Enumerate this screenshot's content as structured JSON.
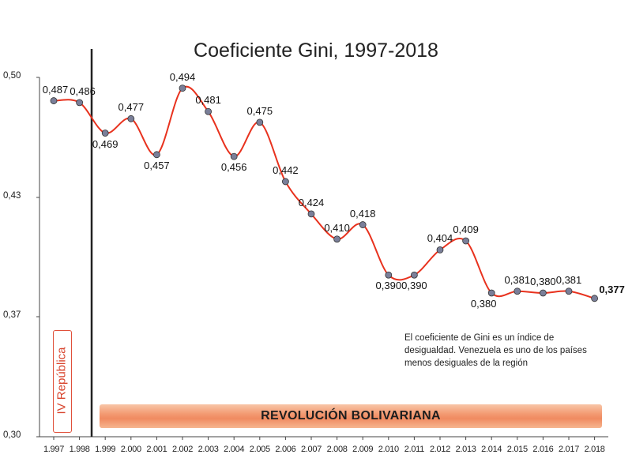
{
  "chart_data": {
    "type": "line",
    "title": "Coeficiente Gini, 1997-2018",
    "x": [
      "1.997",
      "1.998",
      "1.999",
      "2.000",
      "2.001",
      "2.002",
      "2.003",
      "2.004",
      "2.005",
      "2.006",
      "2.007",
      "2.008",
      "2.009",
      "2.010",
      "2.011",
      "2.012",
      "2.013",
      "2.014",
      "2.015",
      "2.016",
      "2.017",
      "2.018"
    ],
    "values": [
      0.487,
      0.486,
      0.469,
      0.477,
      0.457,
      0.494,
      0.481,
      0.456,
      0.475,
      0.442,
      0.424,
      0.41,
      0.418,
      0.39,
      0.39,
      0.404,
      0.409,
      0.38,
      0.381,
      0.38,
      0.381,
      0.377
    ],
    "value_labels": [
      "0,487",
      "0,486",
      "0,469",
      "0,477",
      "0,457",
      "0,494",
      "0,481",
      "0,456",
      "0,475",
      "0,442",
      "0,424",
      "0,410",
      "0,418",
      "0,390",
      "0,390",
      "0,404",
      "0,409",
      "0,380",
      "0,381",
      "0,380",
      "0,381",
      "0,377"
    ],
    "y_ticks": [
      "0,50",
      "0,43",
      "0,37",
      "0,30"
    ],
    "ylim": [
      0.3,
      0.5
    ],
    "grid": false,
    "line_color": "#e8321e",
    "marker_color": "#7a7f99",
    "vertical_marker_after": "1.998",
    "eras": {
      "before": "IV República",
      "after": "REVOLUCIÓN BOLIVARIANA"
    },
    "annotation": "El coeficiente de Gini es un índice de desigualdad. Venezuela es uno de los países menos desiguales de la región"
  }
}
